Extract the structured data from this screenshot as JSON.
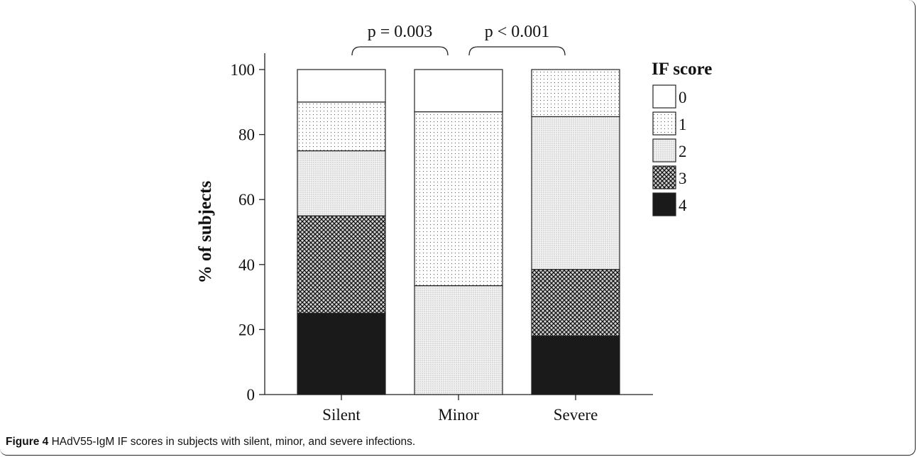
{
  "chart_data": {
    "type": "bar",
    "stacked": true,
    "categories": [
      "Silent",
      "Minor",
      "Severe"
    ],
    "ylabel": "% of subjects",
    "xlabel": "",
    "ylim": [
      0,
      100
    ],
    "yticks": [
      0,
      20,
      40,
      60,
      80,
      100
    ],
    "grid": false,
    "legend": {
      "title": "IF score",
      "placement": "right"
    },
    "series": [
      {
        "name": "4",
        "values": [
          25,
          0,
          18
        ]
      },
      {
        "name": "3",
        "values": [
          30,
          0,
          20.5
        ]
      },
      {
        "name": "2",
        "values": [
          20,
          33.5,
          47
        ]
      },
      {
        "name": "1",
        "values": [
          15,
          53.5,
          14.5
        ]
      },
      {
        "name": "0",
        "values": [
          10,
          13,
          0
        ]
      }
    ],
    "annotations": [
      {
        "text": "p = 0.003",
        "from": "Silent",
        "to": "Minor"
      },
      {
        "text": "p < 0.001",
        "from": "Minor",
        "to": "Severe"
      }
    ]
  },
  "caption": {
    "label": "Figure 4",
    "text": " HAdV55-IgM IF scores in subjects with silent, minor, and severe infections."
  }
}
